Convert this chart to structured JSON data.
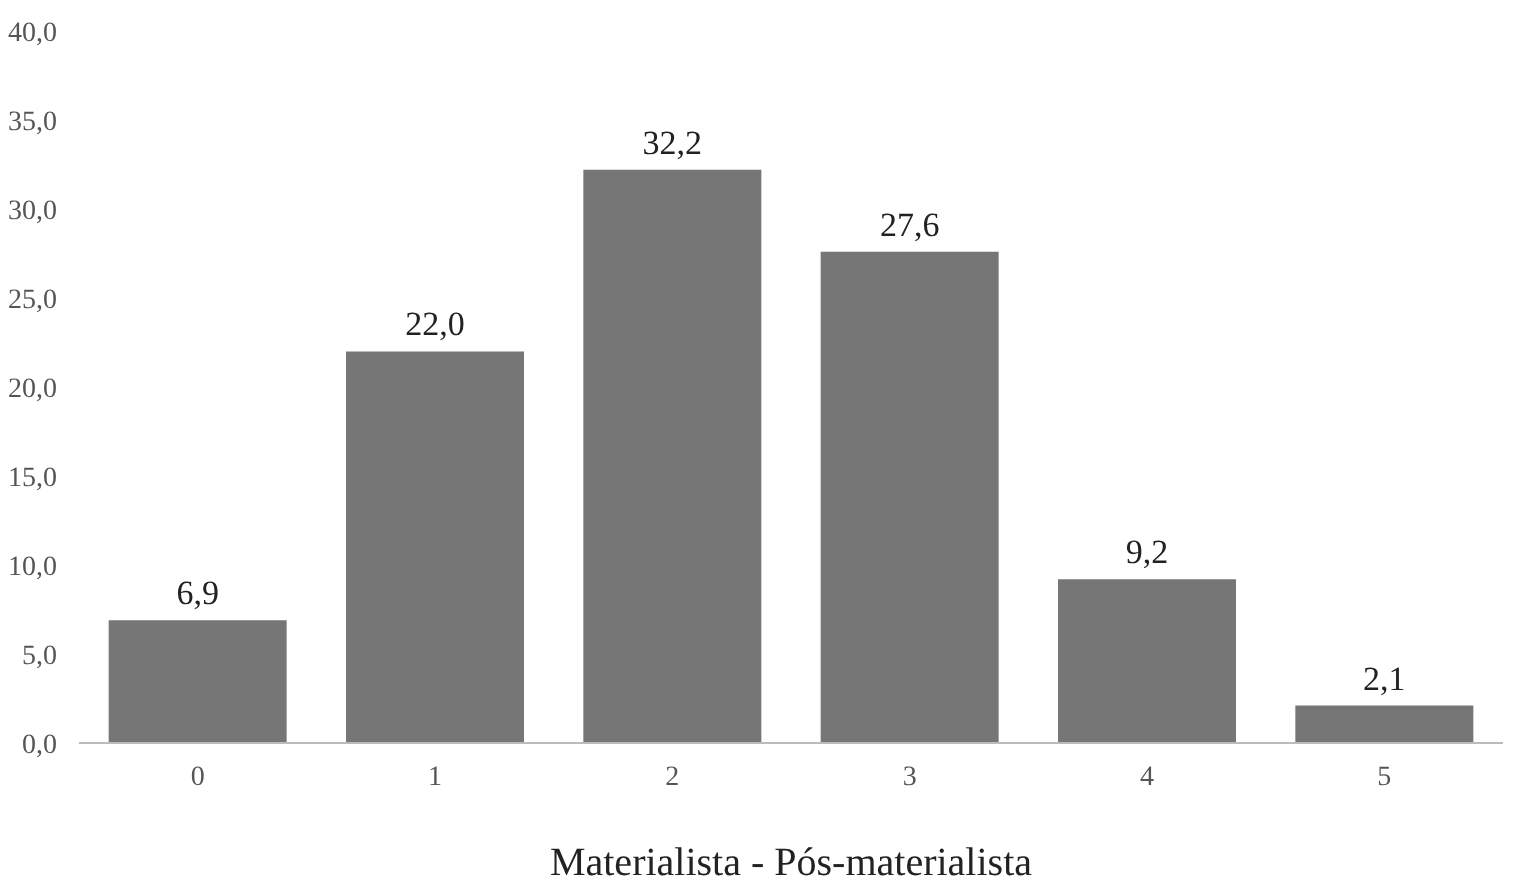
{
  "chart_data": {
    "type": "bar",
    "categories": [
      "0",
      "1",
      "2",
      "3",
      "4",
      "5"
    ],
    "values": [
      6.9,
      22.0,
      32.2,
      27.6,
      9.2,
      2.1
    ],
    "value_labels": [
      "6,9",
      "22,0",
      "32,2",
      "27,6",
      "9,2",
      "2,1"
    ],
    "color": "#767676",
    "xlabel": "Materialista - Pós-materialista",
    "ylim": [
      0,
      40
    ],
    "yticks": [
      {
        "value": 0,
        "label": "0,0"
      },
      {
        "value": 5,
        "label": "5,0"
      },
      {
        "value": 10,
        "label": "10,0"
      },
      {
        "value": 15,
        "label": "15,0"
      },
      {
        "value": 20,
        "label": "20,0"
      },
      {
        "value": 25,
        "label": "25,0"
      },
      {
        "value": 30,
        "label": "30,0"
      },
      {
        "value": 35,
        "label": "35,0"
      },
      {
        "value": 40,
        "label": "40,0"
      }
    ],
    "grid": false
  }
}
